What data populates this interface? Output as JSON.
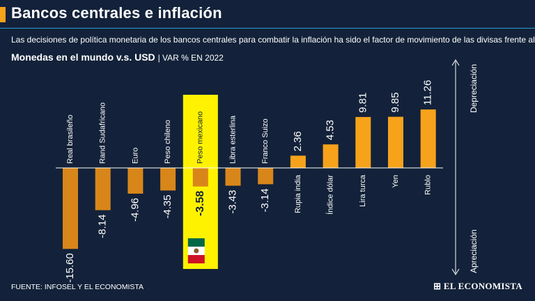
{
  "header": {
    "title": "Bancos centrales e inflación",
    "subtitle": "Las decisiones de política monetaria de los bancos centrales para combatir la inflación ha sido el factor de movimiento de las divisas frente al dólar."
  },
  "chart_data": {
    "type": "bar",
    "title": "Monedas en el mundo v.s. USD",
    "unit_label": "| VAR % EN 2022",
    "categories": [
      "Real brasileño",
      "Rand Sudafricano",
      "Euro",
      "Peso chileno",
      "Peso mexicano",
      "Libra esterlina",
      "Franco Suizo",
      "Rupia india",
      "Índice dólar",
      "Lira turca",
      "Yen",
      "Rublo"
    ],
    "values": [
      -15.6,
      -8.14,
      -4.96,
      -4.35,
      -3.58,
      -3.43,
      -3.14,
      2.36,
      4.53,
      9.81,
      9.85,
      11.26
    ],
    "value_labels": [
      "-15.60",
      "-8.14",
      "-4.96",
      "-4.35",
      "-3.58",
      "-3.43",
      "-3.14",
      "2.36",
      "4.53",
      "9.81",
      "9.85",
      "11.26"
    ],
    "highlight_category": "Peso mexicano",
    "axis_top_label": "Depreciación",
    "axis_bottom_label": "Apreciación",
    "ylim": [
      -15.6,
      11.26
    ]
  },
  "footer": {
    "source": "FUENTE: INFOSEL Y EL ECONOMISTA",
    "brand": "EL ECONOMISTA"
  },
  "colors": {
    "background": "#13223a",
    "negative_bar": "#d8861a",
    "positive_bar": "#f7a21b",
    "highlight": "#fff200",
    "accent_rule": "#2a9bd6"
  }
}
